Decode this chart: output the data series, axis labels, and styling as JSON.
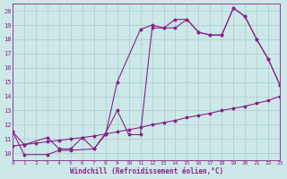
{
  "xlabel": "Windchill (Refroidissement éolien,°C)",
  "bg_color": "#cce8e8",
  "line_color": "#882288",
  "grid_color": "#aacccc",
  "xlim": [
    0,
    23
  ],
  "ylim": [
    9.5,
    20.5
  ],
  "yticks": [
    10,
    11,
    12,
    13,
    14,
    15,
    16,
    17,
    18,
    19,
    20
  ],
  "xticks": [
    0,
    1,
    2,
    3,
    4,
    5,
    6,
    7,
    8,
    9,
    10,
    11,
    12,
    13,
    14,
    15,
    16,
    17,
    18,
    19,
    20,
    21,
    22,
    23
  ],
  "line1_x": [
    0,
    1,
    3,
    4,
    5,
    7,
    8,
    9,
    11,
    12,
    13,
    14,
    15,
    16,
    17,
    18,
    19,
    20,
    21,
    22,
    23
  ],
  "line1_y": [
    11.5,
    9.9,
    9.9,
    10.2,
    10.2,
    10.3,
    11.3,
    15.0,
    18.7,
    19.0,
    18.8,
    19.4,
    19.4,
    18.5,
    18.3,
    18.3,
    20.2,
    19.6,
    18.0,
    16.6,
    14.8
  ],
  "line2_x": [
    0,
    1,
    3,
    4,
    5,
    6,
    7,
    8,
    9,
    10,
    11,
    12,
    13,
    14,
    15,
    16,
    17,
    18,
    19,
    20,
    21,
    22,
    23
  ],
  "line2_y": [
    11.5,
    10.6,
    11.1,
    10.3,
    10.3,
    11.1,
    10.3,
    11.4,
    13.0,
    11.3,
    11.3,
    18.8,
    18.8,
    18.8,
    19.4,
    18.5,
    18.3,
    18.3,
    20.2,
    19.6,
    18.0,
    16.6,
    14.8
  ],
  "line3_x": [
    0,
    1,
    2,
    3,
    4,
    5,
    6,
    7,
    8,
    9,
    10,
    11,
    12,
    13,
    14,
    15,
    16,
    17,
    18,
    19,
    20,
    21,
    22,
    23
  ],
  "line3_y": [
    10.5,
    10.6,
    10.7,
    10.8,
    10.9,
    11.0,
    11.1,
    11.2,
    11.35,
    11.5,
    11.65,
    11.8,
    12.0,
    12.15,
    12.3,
    12.5,
    12.65,
    12.8,
    13.0,
    13.15,
    13.3,
    13.5,
    13.7,
    14.0
  ]
}
